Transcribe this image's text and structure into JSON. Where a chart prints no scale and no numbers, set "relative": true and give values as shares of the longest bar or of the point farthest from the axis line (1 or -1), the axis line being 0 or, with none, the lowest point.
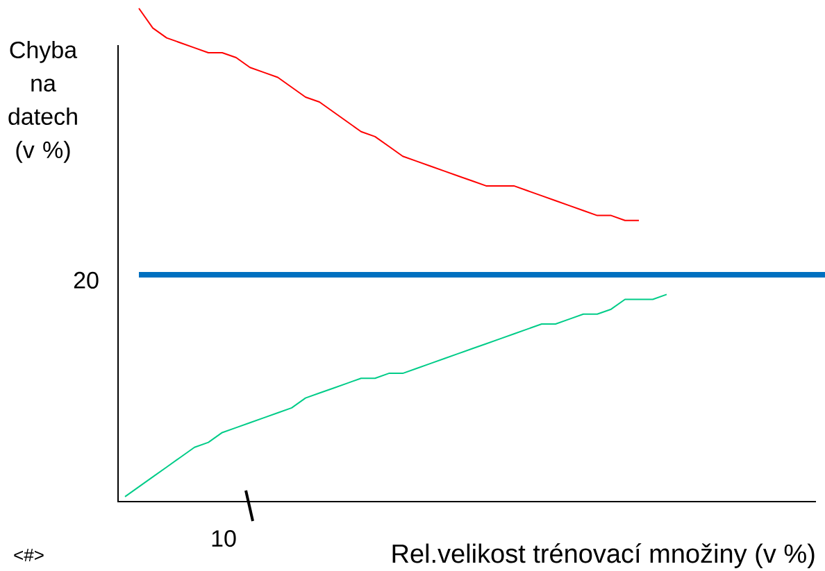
{
  "chart_data": {
    "type": "line",
    "relative": true,
    "ylabel": "Chyba na datech (v %)",
    "annotations": [
      "20",
      "10",
      "<#>",
      "Rel.velikost trénovací množiny (v %)"
    ],
    "categories": [
      null,
      null,
      null,
      null,
      null,
      null,
      null,
      null,
      null,
      null,
      null,
      null,
      null,
      null,
      null,
      null,
      null,
      null,
      null,
      null,
      null,
      null,
      null,
      null,
      null,
      null,
      null,
      null,
      null,
      null,
      null,
      null,
      null,
      null,
      null,
      null,
      null,
      null,
      null,
      null,
      null,
      null,
      null,
      null,
      null,
      null,
      null,
      null,
      null,
      null,
      null
    ],
    "series": [
      {
        "color": "#ff0000",
        "values": [
          null,
          1.0,
          0.96,
          0.94,
          0.93,
          0.92,
          0.91,
          0.91,
          0.9,
          0.88,
          0.87,
          0.86,
          0.84,
          0.82,
          0.81,
          0.79,
          0.77,
          0.75,
          0.74,
          0.72,
          0.7,
          0.69,
          0.68,
          0.67,
          0.66,
          0.65,
          0.64,
          0.64,
          0.64,
          0.63,
          0.62,
          0.61,
          0.6,
          0.59,
          0.58,
          0.58,
          0.57,
          0.57,
          null,
          null,
          null,
          null,
          null,
          null,
          null,
          null,
          null,
          null,
          null,
          null,
          null
        ]
      },
      {
        "color": "#00cc88",
        "values": [
          0.01,
          0.03,
          0.05,
          0.07,
          0.09,
          0.11,
          0.12,
          0.14,
          0.15,
          0.16,
          0.17,
          0.18,
          0.19,
          0.21,
          0.22,
          0.23,
          0.24,
          0.25,
          0.25,
          0.26,
          0.26,
          0.27,
          0.28,
          0.29,
          0.3,
          0.31,
          0.32,
          0.33,
          0.34,
          0.35,
          0.36,
          0.36,
          0.37,
          0.38,
          0.38,
          0.39,
          0.41,
          0.41,
          0.41,
          0.42,
          null,
          null,
          null,
          null,
          null,
          null,
          null,
          null,
          null,
          null,
          null
        ]
      }
    ],
    "ref_lines": [
      {
        "axis": "y",
        "value": 0.46,
        "color": "#0070c0"
      }
    ]
  }
}
